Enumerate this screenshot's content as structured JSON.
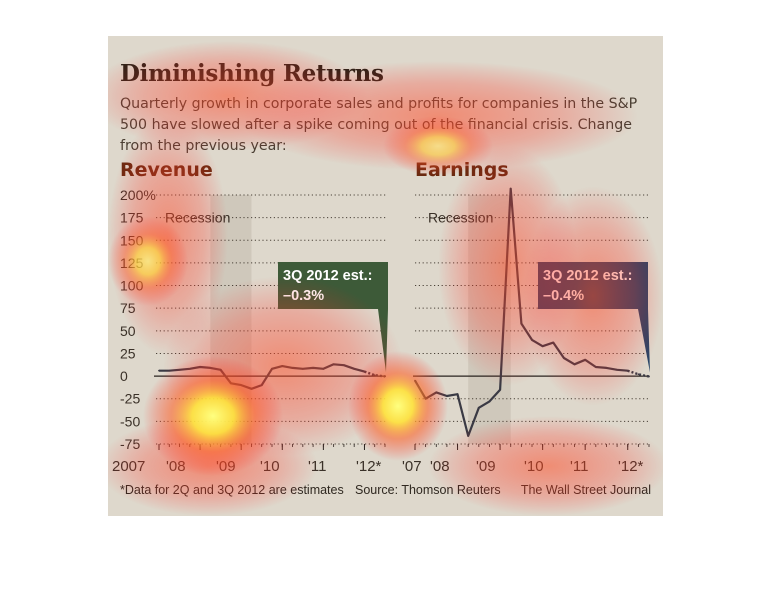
{
  "header": {
    "title": "Diminishing Returns",
    "subtitle": "Quarterly growth in corporate sales and profits for companies in the S&P 500 have slowed after a spike coming out of the financial crisis. Change from the previous year:"
  },
  "footer": {
    "note": "*Data for 2Q and 3Q 2012 are estimates",
    "source": "Source: Thomson Reuters",
    "credit": "The Wall Street Journal"
  },
  "colors": {
    "line": "#3a3a44",
    "revenue_callout": "#3d5a38",
    "earnings_callout": "#284466",
    "recession_shade": "#cfc8bb"
  },
  "chart_data": [
    {
      "type": "line",
      "title": "Revenue",
      "ylim": [
        -75,
        200
      ],
      "yticks": [
        "200%",
        "175",
        "150",
        "125",
        "100",
        "75",
        "50",
        "25",
        "0",
        "-25",
        "-50",
        "-75"
      ],
      "xticks": [
        "2007",
        "'08",
        "'09",
        "'10",
        "'11",
        "'12*"
      ],
      "grid": true,
      "recession_label": "Recession",
      "recession_span": [
        "2Q 2008",
        "2Q 2009"
      ],
      "x": [
        "1Q07",
        "2Q07",
        "3Q07",
        "4Q07",
        "1Q08",
        "2Q08",
        "3Q08",
        "4Q08",
        "1Q09",
        "2Q09",
        "3Q09",
        "4Q09",
        "1Q10",
        "2Q10",
        "3Q10",
        "4Q10",
        "1Q11",
        "2Q11",
        "3Q11",
        "4Q11",
        "1Q12",
        "2Q12",
        "3Q12"
      ],
      "values": [
        6,
        6,
        7,
        8,
        10,
        9,
        7,
        -8,
        -10,
        -14,
        -10,
        8,
        11,
        9,
        8,
        9,
        8,
        13,
        12,
        8,
        5,
        1,
        -0.3
      ],
      "estimates_from_index": 21,
      "callout": {
        "line1": "3Q 2012 est.:",
        "line2": "–0.3%"
      }
    },
    {
      "type": "line",
      "title": "Earnings",
      "ylim": [
        -75,
        200
      ],
      "xticks": [
        "'07",
        "'08",
        "'09",
        "'10",
        "'11",
        "'12*"
      ],
      "grid": true,
      "recession_label": "Recession",
      "recession_span": [
        "2Q 2008",
        "2Q 2009"
      ],
      "x": [
        "1Q07",
        "2Q07",
        "3Q07",
        "4Q07",
        "1Q08",
        "2Q08",
        "3Q08",
        "4Q08",
        "1Q09",
        "2Q09",
        "3Q09",
        "4Q09",
        "1Q10",
        "2Q10",
        "3Q10",
        "4Q10",
        "1Q11",
        "2Q11",
        "3Q11",
        "4Q11",
        "1Q12",
        "2Q12",
        "3Q12"
      ],
      "values": [
        -5,
        -25,
        -18,
        -22,
        -20,
        -66,
        -35,
        -28,
        -15,
        207,
        58,
        40,
        33,
        37,
        20,
        13,
        18,
        10,
        9,
        7,
        6,
        2,
        -0.4
      ],
      "estimates_from_index": 21,
      "callout": {
        "line1": "3Q 2012 est.:",
        "line2": "–0.4%"
      }
    }
  ]
}
